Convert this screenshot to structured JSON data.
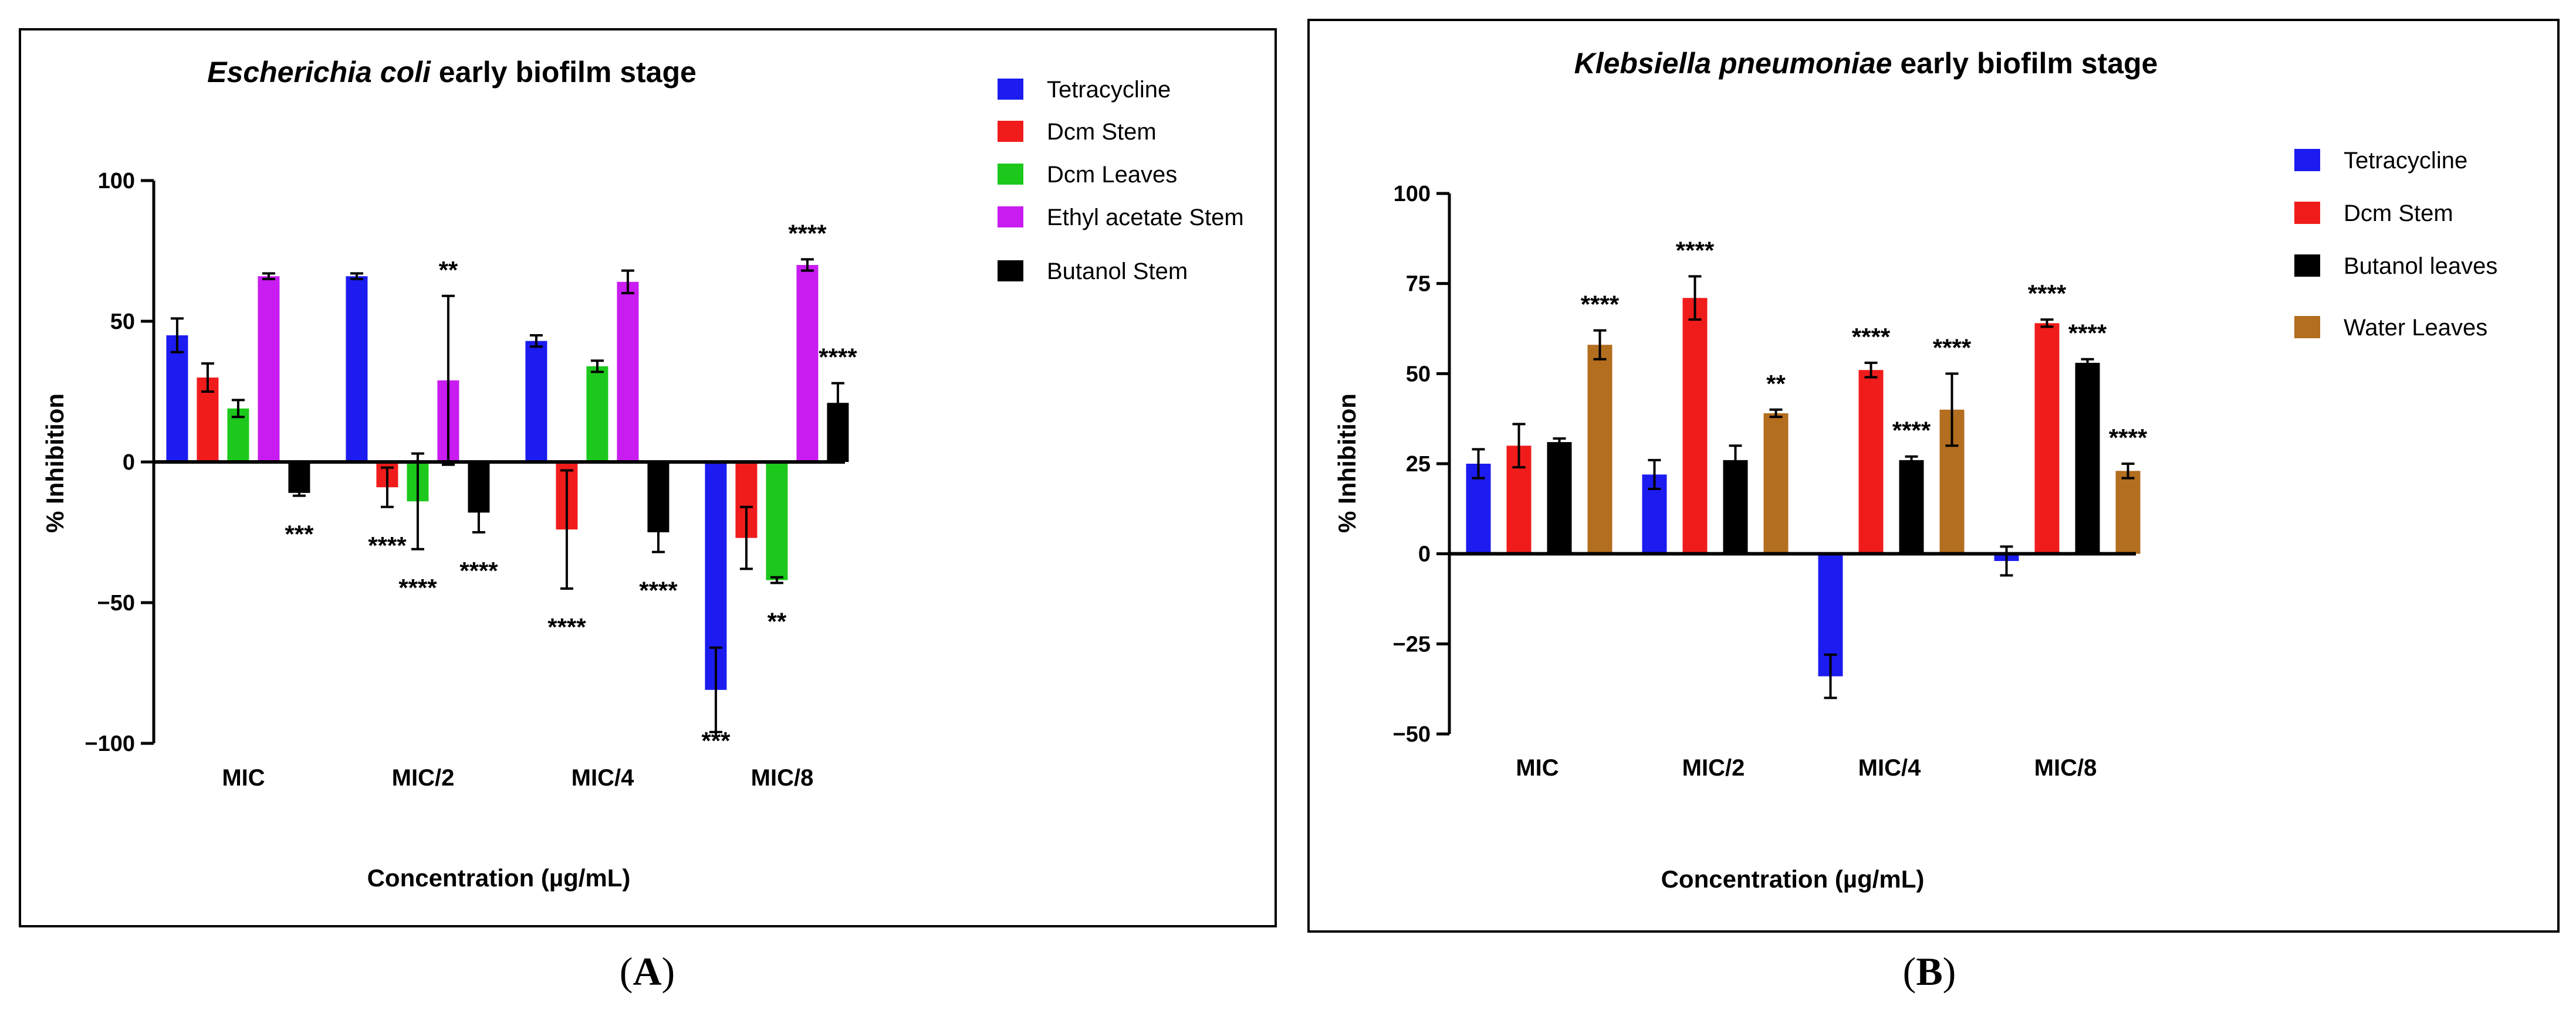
{
  "chart_data": [
    {
      "type": "bar",
      "panel": "A",
      "title_italic": "Escherichia",
      "title_italic_bold": "coli",
      "title_rest": " early biofilm stage",
      "xlabel": "Concentration (µg/mL)",
      "ylabel": "% Inhibition",
      "ylim": [
        -100,
        100
      ],
      "yticks": [
        -100,
        -50,
        0,
        50,
        100
      ],
      "ytick_labels": [
        "−100",
        "−50",
        "0",
        "50",
        "100"
      ],
      "categories": [
        "MIC",
        "MIC/2",
        "MIC/4",
        "MIC/8"
      ],
      "series": [
        {
          "name": "Tetracycline",
          "color": "#1c1cf0",
          "values": [
            45,
            66,
            43,
            -81
          ],
          "errors": [
            6,
            1,
            2,
            15
          ],
          "stars": [
            "",
            "",
            "",
            "***"
          ]
        },
        {
          "name": "Dcm Stem",
          "color": "#f01c1c",
          "values": [
            30,
            -9,
            -24,
            -27
          ],
          "errors": [
            5,
            7,
            21,
            11
          ],
          "stars": [
            "",
            "****",
            "****",
            ""
          ]
        },
        {
          "name": "Dcm Leaves",
          "color": "#1cc81c",
          "values": [
            19,
            -14,
            34,
            -42
          ],
          "errors": [
            3,
            17,
            2,
            1
          ],
          "stars": [
            "",
            "****",
            "",
            "**"
          ]
        },
        {
          "name": "Ethyl acetate Stem",
          "color": "#c81cf0",
          "values": [
            66,
            29,
            64,
            70
          ],
          "errors": [
            1,
            30,
            4,
            2
          ],
          "stars": [
            "",
            "**",
            "",
            "****"
          ]
        },
        {
          "name": "Butanol Stem",
          "color": "#000000",
          "values": [
            -11,
            -18,
            -25,
            21
          ],
          "errors": [
            1,
            7,
            7,
            7
          ],
          "stars": [
            "***",
            "****",
            "****",
            "****"
          ]
        }
      ]
    },
    {
      "type": "bar",
      "panel": "B",
      "title_italic_bold": "Klebsiella pneumoniae",
      "title_rest": " early biofilm stage",
      "xlabel": "Concentration (µg/mL)",
      "ylabel": "% Inhibition",
      "ylim": [
        -50,
        100
      ],
      "yticks": [
        -50,
        -25,
        0,
        25,
        50,
        75,
        100
      ],
      "ytick_labels": [
        "−50",
        "−25",
        "0",
        "25",
        "50",
        "75",
        "100"
      ],
      "categories": [
        "MIC",
        "MIC/2",
        "MIC/4",
        "MIC/8"
      ],
      "series": [
        {
          "name": "Tetracycline",
          "color": "#1c1cf0",
          "values": [
            25,
            22,
            -34,
            -2
          ],
          "errors": [
            4,
            4,
            6,
            4
          ],
          "stars": [
            "",
            "",
            "",
            ""
          ]
        },
        {
          "name": "Dcm Stem",
          "color": "#f01c1c",
          "values": [
            30,
            71,
            51,
            64
          ],
          "errors": [
            6,
            6,
            2,
            1
          ],
          "stars": [
            "",
            "****",
            "****",
            "****"
          ]
        },
        {
          "name": "Butanol leaves",
          "color": "#000000",
          "values": [
            31,
            26,
            26,
            53
          ],
          "errors": [
            1,
            4,
            1,
            1
          ],
          "stars": [
            "",
            "",
            "****",
            "****"
          ]
        },
        {
          "name": "Water Leaves",
          "color": "#b36e1f",
          "values": [
            58,
            39,
            40,
            23
          ],
          "errors": [
            4,
            1,
            10,
            2
          ],
          "stars": [
            "****",
            "**",
            "****",
            "****"
          ]
        }
      ]
    }
  ],
  "panel_labels": [
    "A",
    "B"
  ]
}
